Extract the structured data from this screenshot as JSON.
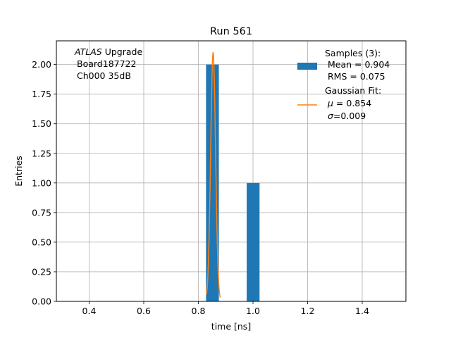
{
  "chart_data": {
    "type": "bar",
    "title": "Run 561",
    "xlabel": "time [ns]",
    "ylabel": "Entries",
    "xlim": [
      0.28,
      1.56
    ],
    "ylim": [
      0.0,
      2.2
    ],
    "grid": true,
    "xticks": [
      0.4,
      0.6,
      0.8,
      1.0,
      1.2,
      1.4
    ],
    "xtick_labels": [
      "0.4",
      "0.6",
      "0.8",
      "1.0",
      "1.2",
      "1.4"
    ],
    "yticks": [
      0.0,
      0.25,
      0.5,
      0.75,
      1.0,
      1.25,
      1.5,
      1.75,
      2.0
    ],
    "ytick_labels": [
      "0.00",
      "0.25",
      "0.50",
      "0.75",
      "1.00",
      "1.25",
      "1.50",
      "1.75",
      "2.00"
    ],
    "histogram": {
      "bins": [
        {
          "x0": 0.828,
          "x1": 0.875,
          "count": 2
        },
        {
          "x0": 0.977,
          "x1": 1.024,
          "count": 1
        }
      ],
      "color": "#1f77b4"
    },
    "gaussian_fit": {
      "mu": 0.854,
      "sigma": 0.009,
      "amplitude": 2.1,
      "x_range": [
        0.83,
        0.88
      ],
      "color": "#ff7f0e"
    },
    "annotation": {
      "atlas": "ATLAS",
      "line1_rest": " Upgrade",
      "line2": "Board187722",
      "line3": "Ch000 35dB"
    },
    "legend": {
      "position": "top-right",
      "samples": {
        "line1": "Samples (3):",
        "line2": "Mean = 0.904",
        "line3": "RMS = 0.075"
      },
      "fit": {
        "line1": "Gaussian Fit:",
        "line2_symbol": "μ",
        "line2_rest": " = 0.854",
        "line3_symbol": "σ",
        "line3_rest": "=0.009"
      }
    }
  }
}
